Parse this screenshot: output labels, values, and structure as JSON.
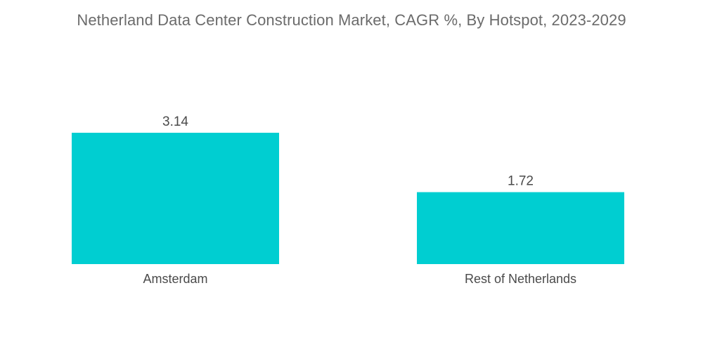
{
  "chart_data": {
    "type": "bar",
    "title": "Netherland Data Center Construction Market, CAGR %, By Hotspot, 2023-2029",
    "categories": [
      "Amsterdam",
      "Rest of Netherlands"
    ],
    "values": [
      3.14,
      1.72
    ],
    "value_labels": [
      "3.14",
      "1.72"
    ],
    "xlabel": "",
    "ylabel": "",
    "ylim": [
      0,
      3.14
    ],
    "grid": false,
    "legend": "none",
    "bar_color": "#00CED1"
  }
}
